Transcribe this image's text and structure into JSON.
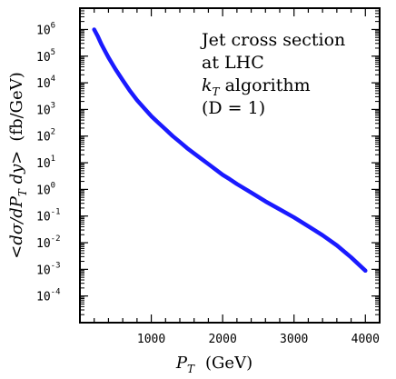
{
  "chart_data": {
    "type": "line",
    "xlabel": {
      "var": "P",
      "sub": "T",
      "unit": "(GeV)"
    },
    "ylabel": {
      "text": "<dσ/dP",
      "sub": "T",
      "tail": " dy>",
      "unit": "(fb/GeV)"
    },
    "xlim": [
      0,
      4200
    ],
    "ylim_log10": [
      -5,
      6.8
    ],
    "x_ticks": [
      {
        "value": 1000,
        "label": "1000"
      },
      {
        "value": 2000,
        "label": "2000"
      },
      {
        "value": 3000,
        "label": "3000"
      },
      {
        "value": 4000,
        "label": "4000"
      }
    ],
    "y_ticks": [
      {
        "exp": 6,
        "base": "10",
        "power": "6"
      },
      {
        "exp": 5,
        "base": "10",
        "power": "5"
      },
      {
        "exp": 4,
        "base": "10",
        "power": "4"
      },
      {
        "exp": 3,
        "base": "10",
        "power": "3"
      },
      {
        "exp": 2,
        "base": "10",
        "power": "2"
      },
      {
        "exp": 1,
        "base": "10",
        "power": "1"
      },
      {
        "exp": 0,
        "base": "10",
        "power": "0"
      },
      {
        "exp": -1,
        "base": "10",
        "power": "-1"
      },
      {
        "exp": -2,
        "base": "10",
        "power": "-2"
      },
      {
        "exp": -3,
        "base": "10",
        "power": "-3"
      },
      {
        "exp": -4,
        "base": "10",
        "power": "-4"
      }
    ],
    "annotation": {
      "line1": "Jet cross section",
      "line2": "at LHC",
      "line3_var": "k",
      "line3_sub": "T",
      "line3_rest": " algorithm",
      "line4": "(D = 1)"
    },
    "series": [
      {
        "color": "#1a1aff",
        "points": [
          [
            200,
            6.0
          ],
          [
            250,
            5.75
          ],
          [
            300,
            5.45
          ],
          [
            350,
            5.2
          ],
          [
            400,
            4.95
          ],
          [
            500,
            4.5
          ],
          [
            600,
            4.1
          ],
          [
            700,
            3.7
          ],
          [
            800,
            3.35
          ],
          [
            900,
            3.05
          ],
          [
            1000,
            2.75
          ],
          [
            1100,
            2.5
          ],
          [
            1200,
            2.25
          ],
          [
            1300,
            2.0
          ],
          [
            1400,
            1.78
          ],
          [
            1500,
            1.55
          ],
          [
            1600,
            1.35
          ],
          [
            1700,
            1.15
          ],
          [
            1800,
            0.95
          ],
          [
            1900,
            0.75
          ],
          [
            2000,
            0.55
          ],
          [
            2100,
            0.38
          ],
          [
            2200,
            0.2
          ],
          [
            2400,
            -0.12
          ],
          [
            2600,
            -0.45
          ],
          [
            2800,
            -0.75
          ],
          [
            3000,
            -1.05
          ],
          [
            3200,
            -1.38
          ],
          [
            3400,
            -1.72
          ],
          [
            3600,
            -2.1
          ],
          [
            3800,
            -2.55
          ],
          [
            4000,
            -3.05
          ]
        ]
      }
    ]
  }
}
